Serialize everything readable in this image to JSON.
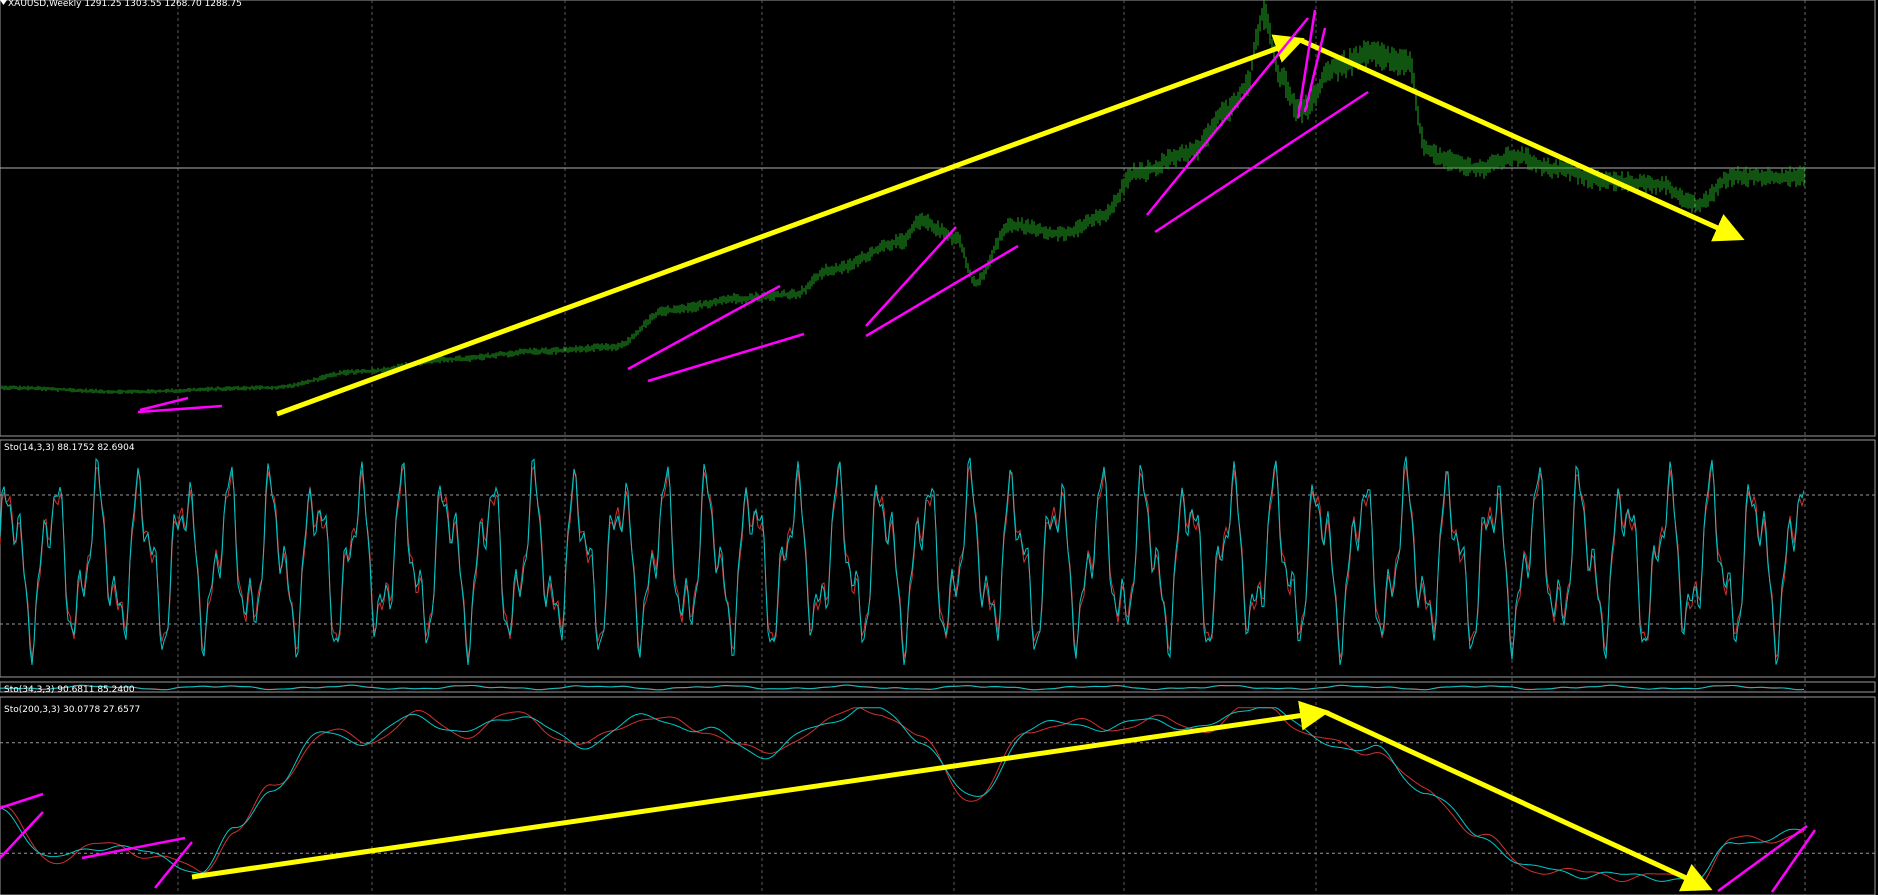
{
  "header": {
    "symbol_label": "XAUUSD,Weekly  1291.25 1303.55 1268.70 1288.75"
  },
  "colors": {
    "background": "#000000",
    "price_bars": "#22a822",
    "stoch_main": "#00c8c8",
    "stoch_signal": "#d03030",
    "trendline_major": "#ffff00",
    "trendline_minor": "#ff00ff",
    "level_line": "#b0b0b0",
    "panel_separator": "#9a9a9a",
    "text": "#ffffff"
  },
  "chart_data": [
    {
      "type": "line",
      "name": "price",
      "label": "XAUUSD,Weekly  1291.25 1303.55 1268.70 1288.75",
      "x_range": [
        0,
        1
      ],
      "y_range": [
        0,
        1
      ],
      "keypoints": [
        [
          0.0,
          0.06
        ],
        [
          0.07,
          0.05
        ],
        [
          0.15,
          0.06
        ],
        [
          0.2,
          0.1
        ],
        [
          0.25,
          0.13
        ],
        [
          0.3,
          0.15
        ],
        [
          0.34,
          0.16
        ],
        [
          0.37,
          0.25
        ],
        [
          0.41,
          0.28
        ],
        [
          0.44,
          0.29
        ],
        [
          0.46,
          0.35
        ],
        [
          0.5,
          0.42
        ],
        [
          0.51,
          0.47
        ],
        [
          0.53,
          0.43
        ],
        [
          0.54,
          0.32
        ],
        [
          0.56,
          0.46
        ],
        [
          0.59,
          0.44
        ],
        [
          0.61,
          0.48
        ],
        [
          0.63,
          0.59
        ],
        [
          0.66,
          0.64
        ],
        [
          0.68,
          0.74
        ],
        [
          0.69,
          0.8
        ],
        [
          0.7,
          0.98
        ],
        [
          0.71,
          0.82
        ],
        [
          0.72,
          0.74
        ],
        [
          0.74,
          0.85
        ],
        [
          0.76,
          0.88
        ],
        [
          0.78,
          0.86
        ],
        [
          0.79,
          0.65
        ],
        [
          0.8,
          0.62
        ],
        [
          0.82,
          0.6
        ],
        [
          0.84,
          0.63
        ],
        [
          0.86,
          0.6
        ],
        [
          0.89,
          0.57
        ],
        [
          0.92,
          0.56
        ],
        [
          0.94,
          0.51
        ],
        [
          0.96,
          0.58
        ]
      ]
    },
    {
      "type": "line",
      "name": "stochastic",
      "label": "Sto(14,3,3) 88.1752 82.6904",
      "values": [
        88.1752,
        82.6904
      ],
      "levels": [
        80,
        20
      ],
      "ylim": [
        0,
        100
      ]
    },
    {
      "type": "line",
      "name": "stochastic",
      "label": "Sto(34,3,3) 90.6811 85.2400",
      "values": [
        90.6811,
        85.24
      ],
      "ylim": [
        0,
        100
      ]
    },
    {
      "type": "line",
      "name": "stochastic",
      "label": "Sto(200,3,3) 30.0778 27.6577",
      "values": [
        30.0778,
        27.6577
      ],
      "levels": [
        80,
        20
      ],
      "ylim": [
        0,
        100
      ],
      "keypoints": [
        [
          0.0,
          45
        ],
        [
          0.03,
          20
        ],
        [
          0.06,
          22
        ],
        [
          0.09,
          15
        ],
        [
          0.11,
          12
        ],
        [
          0.13,
          35
        ],
        [
          0.15,
          55
        ],
        [
          0.18,
          82
        ],
        [
          0.2,
          80
        ],
        [
          0.23,
          98
        ],
        [
          0.26,
          85
        ],
        [
          0.29,
          92
        ],
        [
          0.32,
          80
        ],
        [
          0.35,
          95
        ],
        [
          0.39,
          84
        ],
        [
          0.42,
          75
        ],
        [
          0.45,
          90
        ],
        [
          0.48,
          98
        ],
        [
          0.51,
          80
        ],
        [
          0.54,
          52
        ],
        [
          0.57,
          88
        ],
        [
          0.61,
          86
        ],
        [
          0.64,
          95
        ],
        [
          0.67,
          90
        ],
        [
          0.7,
          98
        ],
        [
          0.73,
          82
        ],
        [
          0.76,
          80
        ],
        [
          0.79,
          52
        ],
        [
          0.82,
          26
        ],
        [
          0.85,
          15
        ],
        [
          0.88,
          10
        ],
        [
          0.91,
          3
        ],
        [
          0.94,
          6
        ],
        [
          0.96,
          30
        ]
      ]
    }
  ]
}
